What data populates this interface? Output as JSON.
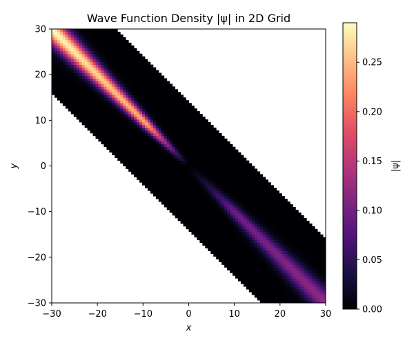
{
  "chart_data": {
    "type": "heatmap",
    "title": "Wave Function Density |ψ| in 2D Grid",
    "xlabel": "x",
    "ylabel": "y",
    "xlim": [
      -30,
      30
    ],
    "ylim": [
      -30,
      30
    ],
    "x_ticks": [
      -30,
      -20,
      -10,
      0,
      10,
      20,
      30
    ],
    "y_ticks": [
      -30,
      -20,
      -10,
      0,
      10,
      20,
      30
    ],
    "x_tick_labels": [
      "−30",
      "−20",
      "−10",
      "0",
      "10",
      "20",
      "30"
    ],
    "y_tick_labels": [
      "−30",
      "−20",
      "−10",
      "0",
      "10",
      "20",
      "30"
    ],
    "colormap": "magma",
    "colorbar": {
      "label": "|ψ|",
      "range": [
        0,
        0.29
      ],
      "ticks": [
        0.0,
        0.05,
        0.1,
        0.15,
        0.2,
        0.25
      ],
      "tick_labels": [
        "0.00",
        "0.05",
        "0.10",
        "0.15",
        "0.20",
        "0.25"
      ]
    },
    "region": {
      "description_shape": "band along y = -x with half-width in (x+y) of about 14",
      "center_line": "y = -x",
      "half_width_sum": 14
    },
    "density_ridge": {
      "line": "y = -x",
      "upper_left_peak": 0.29,
      "lower_right_peak": 0.12,
      "dip_at_origin": true
    },
    "grid": false,
    "legend": "none"
  }
}
